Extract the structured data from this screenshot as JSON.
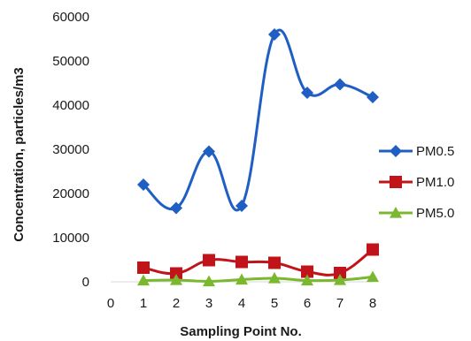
{
  "chart_data": {
    "type": "line",
    "title": "",
    "xlabel": "Sampling Point No.",
    "ylabel": "Concentration, particles/m3",
    "xlim": [
      0,
      8
    ],
    "ylim": [
      0,
      60000
    ],
    "x_ticks": [
      "0",
      "1",
      "2",
      "3",
      "4",
      "5",
      "6",
      "7",
      "8"
    ],
    "y_ticks": [
      "0",
      "10000",
      "20000",
      "30000",
      "40000",
      "50000",
      "60000"
    ],
    "grid": false,
    "legend_position": "right",
    "x": [
      1,
      2,
      3,
      4,
      5,
      6,
      7,
      8
    ],
    "series": [
      {
        "name": "PM0.5",
        "color": "#1f5fc4",
        "marker": "diamond",
        "smooth": true,
        "values": [
          22000,
          16700,
          29500,
          17200,
          56000,
          42800,
          44700,
          41800
        ]
      },
      {
        "name": "PM1.0",
        "color": "#c0141a",
        "marker": "square",
        "smooth": true,
        "values": [
          3200,
          1900,
          4900,
          4500,
          4300,
          2300,
          2000,
          7300
        ]
      },
      {
        "name": "PM5.0",
        "color": "#7ab830",
        "marker": "triangle",
        "smooth": true,
        "values": [
          300,
          400,
          100,
          500,
          800,
          300,
          400,
          1100
        ]
      }
    ]
  }
}
